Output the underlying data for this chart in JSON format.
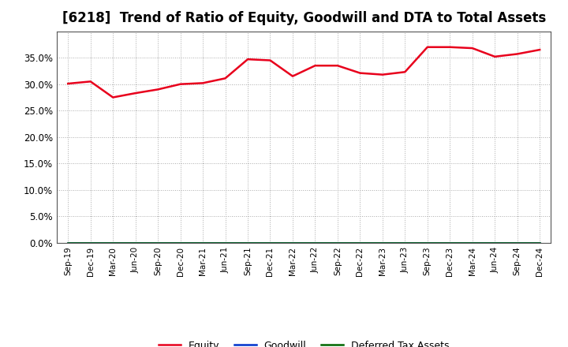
{
  "title": "[6218]  Trend of Ratio of Equity, Goodwill and DTA to Total Assets",
  "x_labels": [
    "Sep-19",
    "Dec-19",
    "Mar-20",
    "Jun-20",
    "Sep-20",
    "Dec-20",
    "Mar-21",
    "Jun-21",
    "Sep-21",
    "Dec-21",
    "Mar-22",
    "Jun-22",
    "Sep-22",
    "Dec-22",
    "Mar-23",
    "Jun-23",
    "Sep-23",
    "Dec-23",
    "Mar-24",
    "Jun-24",
    "Sep-24",
    "Dec-24"
  ],
  "equity": [
    30.1,
    30.5,
    27.5,
    28.3,
    29.0,
    30.0,
    30.2,
    31.1,
    34.7,
    34.5,
    31.5,
    33.5,
    33.5,
    32.1,
    31.8,
    32.3,
    37.0,
    37.0,
    36.8,
    35.2,
    35.7,
    36.5
  ],
  "goodwill": [
    0.0,
    0.0,
    0.0,
    0.0,
    0.0,
    0.0,
    0.0,
    0.0,
    0.0,
    0.0,
    0.0,
    0.0,
    0.0,
    0.0,
    0.0,
    0.0,
    0.0,
    0.0,
    0.0,
    0.0,
    0.0,
    0.0
  ],
  "dta": [
    0.0,
    0.0,
    0.0,
    0.0,
    0.0,
    0.0,
    0.0,
    0.0,
    0.0,
    0.0,
    0.0,
    0.0,
    0.0,
    0.0,
    0.0,
    0.0,
    0.0,
    0.0,
    0.0,
    0.0,
    0.0,
    0.0
  ],
  "equity_color": "#e8001c",
  "goodwill_color": "#0033cc",
  "dta_color": "#006600",
  "ylim": [
    0,
    40
  ],
  "yticks": [
    0.0,
    5.0,
    10.0,
    15.0,
    20.0,
    25.0,
    30.0,
    35.0
  ],
  "background_color": "#ffffff",
  "plot_bg_color": "#ffffff",
  "grid_color": "#aaaaaa",
  "title_fontsize": 12,
  "legend_labels": [
    "Equity",
    "Goodwill",
    "Deferred Tax Assets"
  ]
}
